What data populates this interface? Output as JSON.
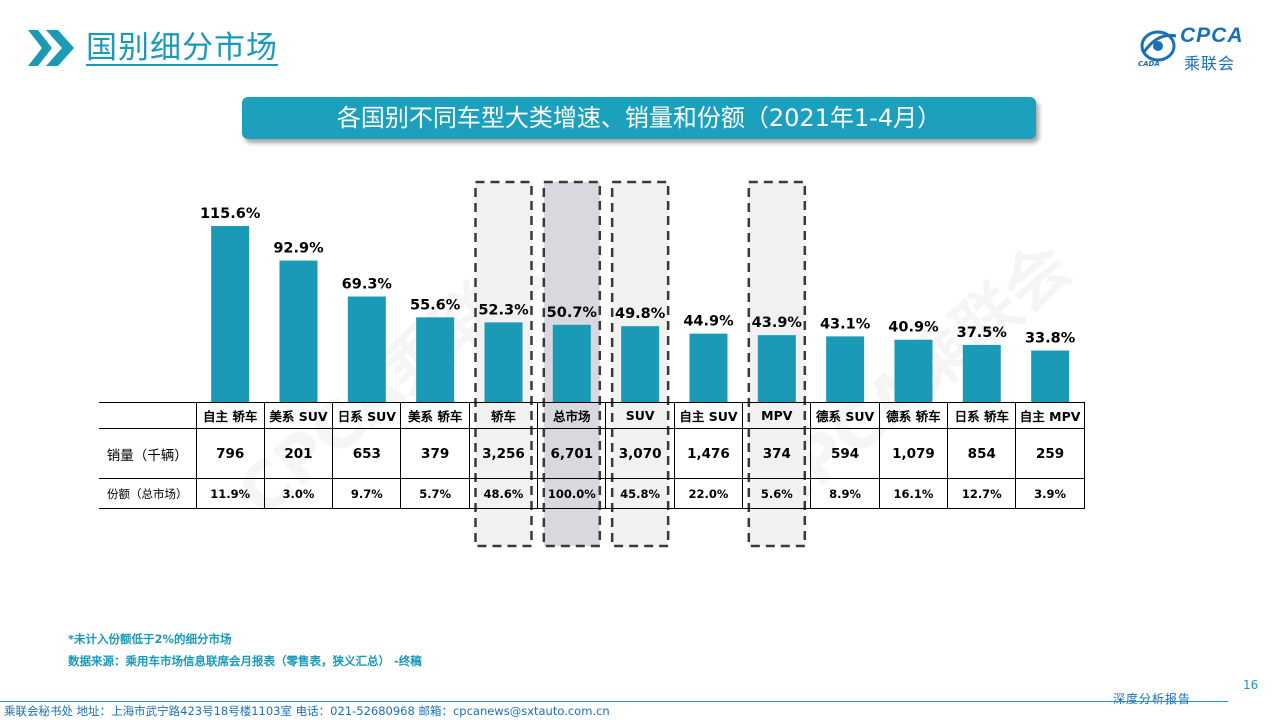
{
  "header": {
    "title": "国别细分市场",
    "logo_en": "CPCA",
    "logo_cn": "乘联会",
    "logo_sub": "CADA"
  },
  "banner": "各国别不同车型大类增速、销量和份额（2021年1-4月）",
  "watermark": "CPCA乘联会",
  "chart_data": {
    "type": "bar",
    "categories": [
      "自主 轿车",
      "美系 SUV",
      "日系 SUV",
      "美系 轿车",
      "轿车",
      "总市场",
      "SUV",
      "自主 SUV",
      "MPV",
      "德系 SUV",
      "德系 轿车",
      "日系 轿车",
      "自主 MPV"
    ],
    "values": [
      115.6,
      92.9,
      69.3,
      55.6,
      52.3,
      50.7,
      49.8,
      44.9,
      43.9,
      43.1,
      40.9,
      37.5,
      33.8
    ],
    "value_labels": [
      "115.6%",
      "92.9%",
      "69.3%",
      "55.6%",
      "52.3%",
      "50.7%",
      "49.8%",
      "44.9%",
      "43.9%",
      "43.1%",
      "40.9%",
      "37.5%",
      "33.8%"
    ],
    "ylim": [
      0,
      120
    ],
    "highlighted": [
      "轿车",
      "总市场",
      "SUV",
      "MPV"
    ],
    "bar_color": "#1b9ab8",
    "table": {
      "rows": [
        {
          "label": "销量（千辆）",
          "values": [
            "796",
            "201",
            "653",
            "379",
            "3,256",
            "6,701",
            "3,070",
            "1,476",
            "374",
            "594",
            "1,079",
            "854",
            "259"
          ]
        },
        {
          "label": "份额（总市场）",
          "values": [
            "11.9%",
            "3.0%",
            "9.7%",
            "5.7%",
            "48.6%",
            "100.0%",
            "45.8%",
            "22.0%",
            "5.6%",
            "8.9%",
            "16.1%",
            "12.7%",
            "3.9%"
          ]
        }
      ]
    }
  },
  "notes": [
    "*未计入份额低于2%的细分市场",
    "数据来源：乘用车市场信息联席会月报表（零售表，狭义汇总）  -终稿"
  ],
  "page_number": "16",
  "footer": "乘联会秘书处    地址：上海市武宁路423号18号楼1103室    电话：021-52680968    邮箱：cpcanews@sxtauto.com.cn",
  "report_label": "深度分析报告"
}
